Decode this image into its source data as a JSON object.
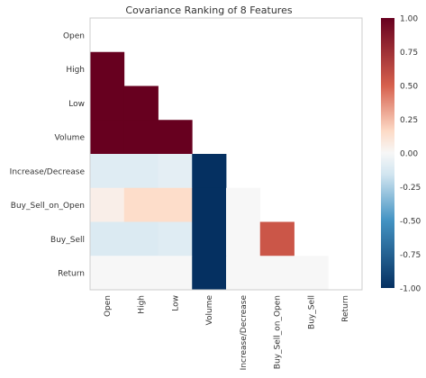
{
  "chart_data": {
    "type": "heatmap",
    "title": "Covariance Ranking of 8 Features",
    "features": [
      "Open",
      "High",
      "Low",
      "Volume",
      "Increase/Decrease",
      "Buy_Sell_on_Open",
      "Buy_Sell",
      "Return"
    ],
    "grid": false,
    "values": [
      [
        null,
        null,
        null,
        null,
        null,
        null,
        null,
        null
      ],
      [
        1.0,
        null,
        null,
        null,
        null,
        null,
        null,
        null
      ],
      [
        1.0,
        1.0,
        null,
        null,
        null,
        null,
        null,
        null
      ],
      [
        1.0,
        1.0,
        1.0,
        null,
        null,
        null,
        null,
        null
      ],
      [
        -0.1,
        -0.1,
        -0.08,
        -1.0,
        null,
        null,
        null,
        null
      ],
      [
        0.05,
        0.15,
        0.15,
        -1.0,
        0.0,
        null,
        null,
        null
      ],
      [
        -0.12,
        -0.12,
        -0.1,
        -1.0,
        0.0,
        0.55,
        null,
        null
      ],
      [
        0.0,
        0.0,
        0.0,
        -1.0,
        0.0,
        0.0,
        0.0,
        null
      ]
    ],
    "colorbar": {
      "min": -1.0,
      "max": 1.0,
      "ticks": [
        "1.00",
        "0.75",
        "0.50",
        "0.25",
        "0.00",
        "-0.25",
        "-0.50",
        "-0.75",
        "-1.00"
      ],
      "colors": {
        "neg_end": "#053061",
        "neg_mid": "#4393c3",
        "neg_light": "#d1e5f0",
        "center": "#f7f7f7",
        "pos_light": "#fddbc7",
        "pos_mid": "#d6604d",
        "pos_end": "#67001f"
      }
    }
  }
}
